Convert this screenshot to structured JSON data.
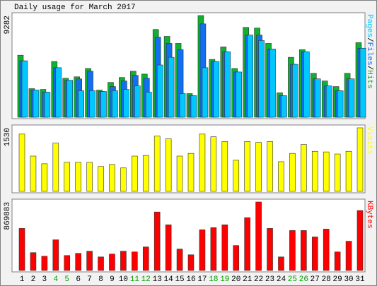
{
  "chart_data": [
    {
      "type": "bar",
      "title": "Daily usage for March 2017",
      "ylim": [
        0,
        9282
      ],
      "yticks": [
        9282
      ],
      "series": [
        {
          "name": "Pages",
          "color": "#00c8ff",
          "values": [
            5150,
            2480,
            2290,
            4520,
            3370,
            2420,
            2420,
            2350,
            2420,
            2540,
            2860,
            2290,
            4770,
            5470,
            2160,
            1970,
            4520,
            5090,
            5980,
            4130,
            7500,
            7000,
            6230,
            1970,
            4830,
            5980,
            3500,
            2860,
            2420,
            3500,
            6300
          ]
        },
        {
          "name": "Files",
          "color": "#1070f0",
          "values": [
            5150,
            2480,
            2290,
            4520,
            3370,
            3500,
            4200,
            2350,
            2800,
            3310,
            3820,
            3560,
            7310,
            6740,
            6170,
            1970,
            8520,
            5090,
            5980,
            4130,
            7500,
            7500,
            6230,
            1970,
            4830,
            5980,
            3500,
            2860,
            2420,
            3500,
            6300
          ]
        },
        {
          "name": "Hits",
          "color": "#10b030",
          "values": [
            5660,
            2610,
            2540,
            5090,
            3560,
            3690,
            4450,
            2480,
            3180,
            3630,
            4200,
            3940,
            8010,
            7380,
            6740,
            2160,
            9282,
            5280,
            6420,
            4450,
            8200,
            8140,
            6740,
            2230,
            5470,
            6170,
            4010,
            3310,
            2800,
            4010,
            6810
          ]
        }
      ]
    },
    {
      "type": "bar",
      "ylim": [
        0,
        1530
      ],
      "yticks": [
        1530
      ],
      "series": [
        {
          "name": "Visits",
          "color": "#ffff00",
          "values": [
            1380,
            850,
            665,
            1165,
            700,
            700,
            700,
            600,
            650,
            565,
            850,
            865,
            1330,
            1265,
            850,
            915,
            1380,
            1315,
            1200,
            750,
            1200,
            1180,
            1200,
            715,
            915,
            1130,
            965,
            950,
            900,
            965,
            1530
          ]
        }
      ]
    },
    {
      "type": "bar",
      "ylim": [
        0,
        869883
      ],
      "yticks": [
        869883
      ],
      "categories": [
        "1",
        "2",
        "3",
        "4",
        "5",
        "6",
        "7",
        "8",
        "9",
        "10",
        "11",
        "12",
        "13",
        "14",
        "15",
        "16",
        "17",
        "18",
        "19",
        "20",
        "21",
        "22",
        "23",
        "24",
        "25",
        "26",
        "27",
        "28",
        "29",
        "30",
        "31"
      ],
      "weekends": [
        "4",
        "5",
        "11",
        "12",
        "18",
        "19",
        "25",
        "26"
      ],
      "weekend_color": "#00a000",
      "series": [
        {
          "name": "KBytes",
          "color": "#ff0000",
          "values": [
            534600,
            226500,
            181200,
            389600,
            190300,
            217500,
            244600,
            172200,
            208400,
            244600,
            235600,
            299000,
            743000,
            579900,
            271800,
            199300,
            516500,
            543700,
            579900,
            317100,
            670500,
            869883,
            534600,
            172200,
            507400,
            507400,
            425900,
            525500,
            235600,
            371500,
            761100
          ]
        }
      ]
    }
  ]
}
